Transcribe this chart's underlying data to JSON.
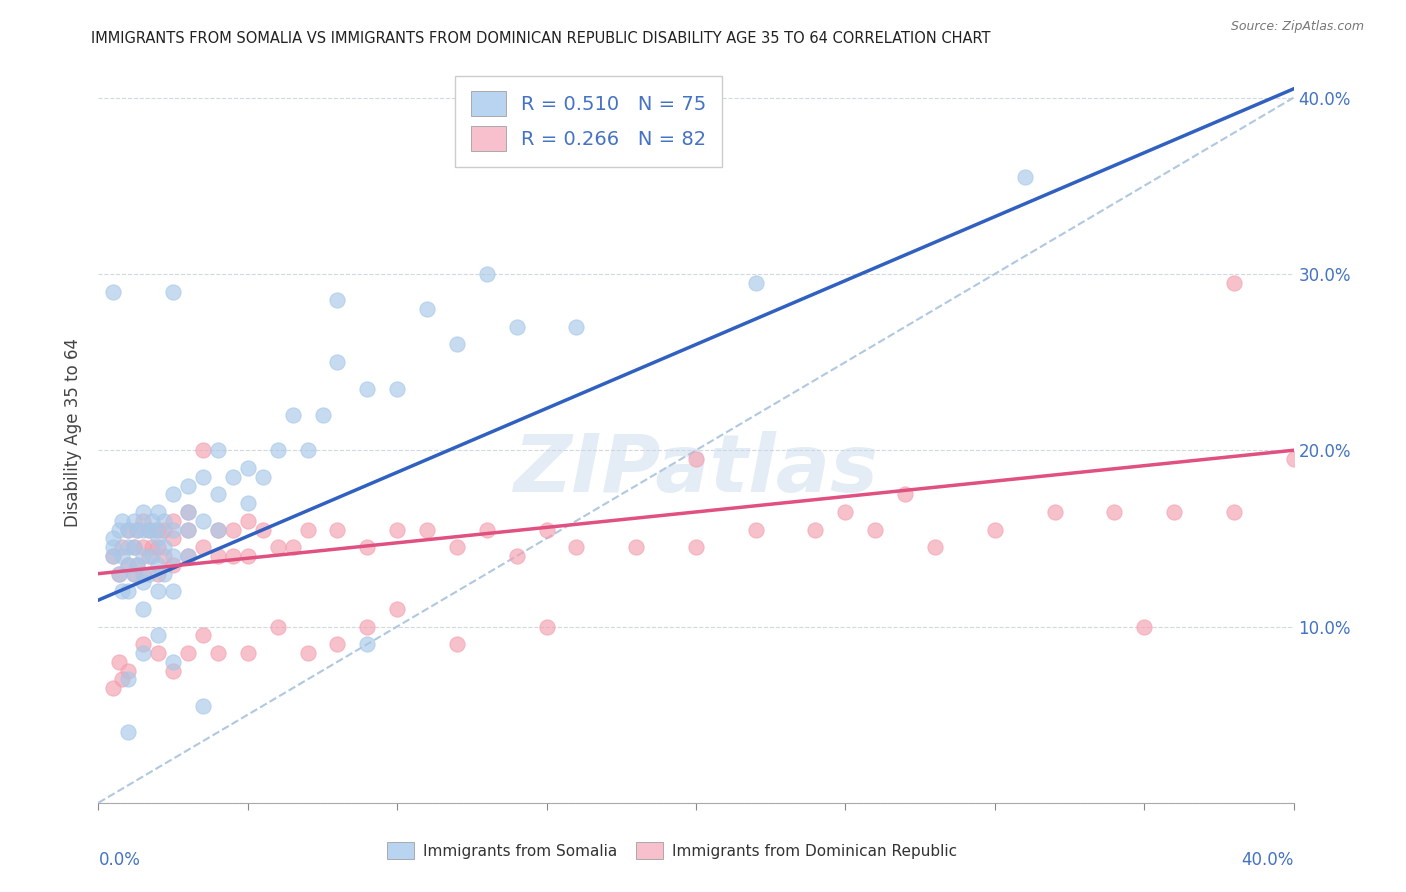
{
  "title": "IMMIGRANTS FROM SOMALIA VS IMMIGRANTS FROM DOMINICAN REPUBLIC DISABILITY AGE 35 TO 64 CORRELATION CHART",
  "source": "Source: ZipAtlas.com",
  "ylabel": "Disability Age 35 to 64",
  "xlim": [
    0.0,
    0.4
  ],
  "ylim": [
    0.0,
    0.42
  ],
  "somalia_R": 0.51,
  "somalia_N": 75,
  "dr_R": 0.266,
  "dr_N": 82,
  "somalia_color": "#a8c8e8",
  "dr_color": "#f4a0b0",
  "somalia_line_color": "#3060c0",
  "dr_line_color": "#e05080",
  "diagonal_color": "#b0c8e0",
  "legend_somalia_facecolor": "#b8d4f0",
  "legend_dr_facecolor": "#f8c0cc",
  "watermark": "ZIPatlas",
  "somalia_scatter_x": [
    0.005,
    0.005,
    0.005,
    0.007,
    0.007,
    0.008,
    0.008,
    0.008,
    0.01,
    0.01,
    0.01,
    0.01,
    0.012,
    0.012,
    0.012,
    0.013,
    0.013,
    0.015,
    0.015,
    0.015,
    0.015,
    0.015,
    0.017,
    0.017,
    0.018,
    0.018,
    0.019,
    0.02,
    0.02,
    0.02,
    0.02,
    0.022,
    0.022,
    0.022,
    0.025,
    0.025,
    0.025,
    0.025,
    0.03,
    0.03,
    0.03,
    0.03,
    0.035,
    0.035,
    0.04,
    0.04,
    0.04,
    0.045,
    0.05,
    0.05,
    0.055,
    0.06,
    0.065,
    0.07,
    0.075,
    0.08,
    0.09,
    0.1,
    0.12,
    0.14,
    0.16,
    0.11,
    0.13,
    0.09,
    0.035,
    0.025,
    0.02,
    0.015,
    0.01,
    0.01,
    0.025,
    0.08,
    0.22,
    0.31,
    0.005
  ],
  "somalia_scatter_y": [
    0.14,
    0.145,
    0.15,
    0.13,
    0.155,
    0.12,
    0.14,
    0.16,
    0.12,
    0.135,
    0.145,
    0.155,
    0.13,
    0.145,
    0.16,
    0.135,
    0.155,
    0.11,
    0.125,
    0.14,
    0.155,
    0.165,
    0.13,
    0.155,
    0.14,
    0.16,
    0.155,
    0.12,
    0.135,
    0.15,
    0.165,
    0.13,
    0.145,
    0.16,
    0.12,
    0.14,
    0.155,
    0.175,
    0.14,
    0.155,
    0.165,
    0.18,
    0.16,
    0.185,
    0.155,
    0.175,
    0.2,
    0.185,
    0.17,
    0.19,
    0.185,
    0.2,
    0.22,
    0.2,
    0.22,
    0.25,
    0.235,
    0.235,
    0.26,
    0.27,
    0.27,
    0.28,
    0.3,
    0.09,
    0.055,
    0.08,
    0.095,
    0.085,
    0.07,
    0.04,
    0.29,
    0.285,
    0.295,
    0.355,
    0.29
  ],
  "dr_scatter_x": [
    0.005,
    0.007,
    0.008,
    0.01,
    0.01,
    0.012,
    0.012,
    0.013,
    0.013,
    0.015,
    0.015,
    0.015,
    0.017,
    0.017,
    0.018,
    0.02,
    0.02,
    0.02,
    0.022,
    0.022,
    0.025,
    0.025,
    0.025,
    0.03,
    0.03,
    0.03,
    0.035,
    0.035,
    0.04,
    0.04,
    0.045,
    0.045,
    0.05,
    0.05,
    0.055,
    0.06,
    0.065,
    0.07,
    0.08,
    0.09,
    0.1,
    0.11,
    0.12,
    0.13,
    0.14,
    0.15,
    0.16,
    0.18,
    0.2,
    0.22,
    0.24,
    0.26,
    0.28,
    0.3,
    0.32,
    0.34,
    0.36,
    0.38,
    0.4,
    0.25,
    0.27,
    0.2,
    0.15,
    0.12,
    0.1,
    0.09,
    0.08,
    0.07,
    0.06,
    0.05,
    0.04,
    0.035,
    0.03,
    0.025,
    0.02,
    0.015,
    0.01,
    0.008,
    0.007,
    0.005,
    0.38,
    0.35
  ],
  "dr_scatter_y": [
    0.14,
    0.13,
    0.145,
    0.135,
    0.155,
    0.13,
    0.145,
    0.135,
    0.155,
    0.13,
    0.145,
    0.16,
    0.14,
    0.155,
    0.145,
    0.13,
    0.145,
    0.155,
    0.14,
    0.155,
    0.135,
    0.15,
    0.16,
    0.14,
    0.155,
    0.165,
    0.145,
    0.2,
    0.14,
    0.155,
    0.14,
    0.155,
    0.14,
    0.16,
    0.155,
    0.145,
    0.145,
    0.155,
    0.155,
    0.145,
    0.155,
    0.155,
    0.145,
    0.155,
    0.14,
    0.155,
    0.145,
    0.145,
    0.145,
    0.155,
    0.155,
    0.155,
    0.145,
    0.155,
    0.165,
    0.165,
    0.165,
    0.165,
    0.195,
    0.165,
    0.175,
    0.195,
    0.1,
    0.09,
    0.11,
    0.1,
    0.09,
    0.085,
    0.1,
    0.085,
    0.085,
    0.095,
    0.085,
    0.075,
    0.085,
    0.09,
    0.075,
    0.07,
    0.08,
    0.065,
    0.295,
    0.1
  ],
  "somalia_line_x0": 0.0,
  "somalia_line_y0": 0.115,
  "somalia_line_x1": 0.4,
  "somalia_line_y1": 0.405,
  "dr_line_x0": 0.0,
  "dr_line_y0": 0.13,
  "dr_line_x1": 0.4,
  "dr_line_y1": 0.2
}
